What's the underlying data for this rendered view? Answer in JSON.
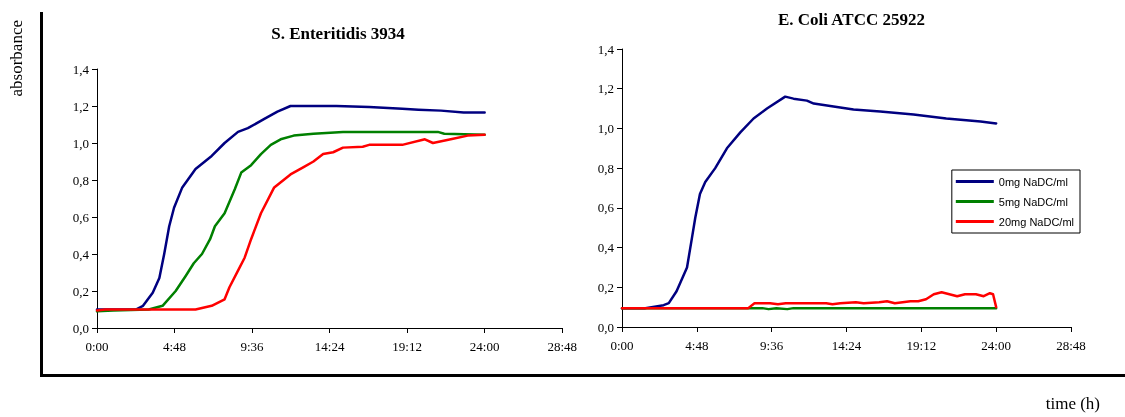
{
  "chart_data": [
    {
      "type": "line",
      "title": "S. Enteritidis 3934",
      "ylabel": "absorbance",
      "marker": "none",
      "line_style": "solid",
      "grid": false,
      "legend": false,
      "xlim": [
        0,
        28.8
      ],
      "xticks": [
        {
          "value": 0,
          "label": "0:00"
        },
        {
          "value": 4.8,
          "label": "4:48"
        },
        {
          "value": 9.6,
          "label": "9:36"
        },
        {
          "value": 14.4,
          "label": "14:24"
        },
        {
          "value": 19.2,
          "label": "19:12"
        },
        {
          "value": 24,
          "label": "24:00"
        },
        {
          "value": 28.8,
          "label": "28:48"
        }
      ],
      "ylim": [
        0,
        1.4
      ],
      "yticks": [
        {
          "value": 0,
          "label": "0,0"
        },
        {
          "value": 0.2,
          "label": "0,2"
        },
        {
          "value": 0.4,
          "label": "0,4"
        },
        {
          "value": 0.6,
          "label": "0,6"
        },
        {
          "value": 0.8,
          "label": "0,8"
        },
        {
          "value": 1.0,
          "label": "1,0"
        },
        {
          "value": 1.2,
          "label": "1,2"
        },
        {
          "value": 1.4,
          "label": "1,4"
        }
      ],
      "series": [
        {
          "color": "#000080",
          "x": [
            0,
            2.4,
            2.85,
            3.45,
            3.86,
            4.16,
            4.47,
            4.77,
            5.28,
            6.1,
            7.1,
            7.9,
            8.73,
            9.34,
            10.36,
            11.17,
            11.98,
            13.4,
            14.82,
            16.85,
            18.9,
            19.9,
            21.3,
            22.7,
            24
          ],
          "values": [
            0.1,
            0.1,
            0.12,
            0.19,
            0.27,
            0.4,
            0.55,
            0.65,
            0.76,
            0.86,
            0.93,
            1.0,
            1.06,
            1.08,
            1.13,
            1.17,
            1.2,
            1.2,
            1.2,
            1.195,
            1.185,
            1.18,
            1.175,
            1.165,
            1.165
          ]
        },
        {
          "color": "#008000",
          "x": [
            0,
            1,
            3.2,
            4.06,
            4.87,
            5.48,
            5.99,
            6.5,
            7.0,
            7.3,
            7.9,
            8.53,
            8.93,
            9.54,
            10.15,
            10.76,
            11.37,
            12.18,
            13.4,
            15.23,
            21.1,
            21.5,
            24
          ],
          "values": [
            0.09,
            0.095,
            0.1,
            0.12,
            0.2,
            0.28,
            0.35,
            0.4,
            0.48,
            0.55,
            0.62,
            0.75,
            0.84,
            0.88,
            0.94,
            0.99,
            1.02,
            1.04,
            1.05,
            1.06,
            1.06,
            1.05,
            1.045
          ]
        },
        {
          "color": "#ff0000",
          "x": [
            0,
            0.5,
            6.1,
            7.1,
            7.9,
            8.2,
            8.73,
            9.14,
            9.54,
            10.15,
            10.97,
            11.98,
            12.79,
            13.4,
            14.0,
            14.62,
            15.23,
            16.45,
            16.85,
            18.9,
            20.3,
            20.8,
            21.9,
            22.95,
            24
          ],
          "values": [
            0.095,
            0.1,
            0.1,
            0.12,
            0.155,
            0.22,
            0.31,
            0.38,
            0.48,
            0.62,
            0.76,
            0.83,
            0.87,
            0.9,
            0.94,
            0.95,
            0.975,
            0.98,
            0.99,
            0.99,
            1.02,
            1.0,
            1.02,
            1.04,
            1.045
          ]
        }
      ]
    },
    {
      "type": "line",
      "title": "E. Coli ATCC 25922",
      "xlabel": "time (h)",
      "marker": "none",
      "line_style": "solid",
      "grid": false,
      "legend": "right",
      "xlim": [
        0,
        28.8
      ],
      "xticks": [
        {
          "value": 0,
          "label": "0:00"
        },
        {
          "value": 4.8,
          "label": "4:48"
        },
        {
          "value": 9.6,
          "label": "9:36"
        },
        {
          "value": 14.4,
          "label": "14:24"
        },
        {
          "value": 19.2,
          "label": "19:12"
        },
        {
          "value": 24,
          "label": "24:00"
        },
        {
          "value": 28.8,
          "label": "28:48"
        }
      ],
      "ylim": [
        0,
        1.4
      ],
      "yticks": [
        {
          "value": 0,
          "label": "0,0"
        },
        {
          "value": 0.2,
          "label": "0,2"
        },
        {
          "value": 0.4,
          "label": "0,4"
        },
        {
          "value": 0.6,
          "label": "0,6"
        },
        {
          "value": 0.8,
          "label": "0,8"
        },
        {
          "value": 1.0,
          "label": "1,0"
        },
        {
          "value": 1.2,
          "label": "1,2"
        },
        {
          "value": 1.4,
          "label": "1,4"
        }
      ],
      "series": [
        {
          "name": "0mg NaDC/ml",
          "color": "#000080",
          "x": [
            0,
            1.5,
            2.67,
            3.0,
            3.5,
            4.17,
            4.49,
            4.7,
            5.0,
            5.34,
            5.98,
            6.73,
            7.59,
            8.44,
            9.3,
            10.47,
            11.0,
            11.86,
            12.3,
            13.57,
            14.85,
            16.56,
            18.7,
            20.8,
            23.0,
            24
          ],
          "values": [
            0.095,
            0.095,
            0.11,
            0.12,
            0.18,
            0.3,
            0.45,
            0.55,
            0.67,
            0.73,
            0.8,
            0.9,
            0.98,
            1.05,
            1.1,
            1.16,
            1.15,
            1.14,
            1.125,
            1.11,
            1.095,
            1.085,
            1.07,
            1.05,
            1.035,
            1.025
          ]
        },
        {
          "name": "5mg NaDC/ml",
          "color": "#008000",
          "x": [
            0,
            9,
            9.4,
            9.9,
            10.6,
            11,
            24
          ],
          "values": [
            0.095,
            0.095,
            0.09,
            0.095,
            0.09,
            0.095,
            0.095
          ]
        },
        {
          "name": "20mg NaDC/ml",
          "color": "#ff0000",
          "x": [
            0,
            8.1,
            8.5,
            9.5,
            10,
            10.5,
            13.1,
            13.5,
            14,
            15,
            15.5,
            16.5,
            17,
            17.5,
            18.5,
            19,
            19.5,
            20,
            20.5,
            21,
            21.5,
            22,
            22.7,
            23.2,
            23.6,
            23.8,
            24
          ],
          "values": [
            0.095,
            0.095,
            0.12,
            0.12,
            0.115,
            0.12,
            0.12,
            0.115,
            0.12,
            0.125,
            0.12,
            0.125,
            0.13,
            0.12,
            0.13,
            0.13,
            0.14,
            0.165,
            0.175,
            0.165,
            0.155,
            0.165,
            0.165,
            0.155,
            0.17,
            0.165,
            0.1
          ]
        }
      ]
    }
  ]
}
